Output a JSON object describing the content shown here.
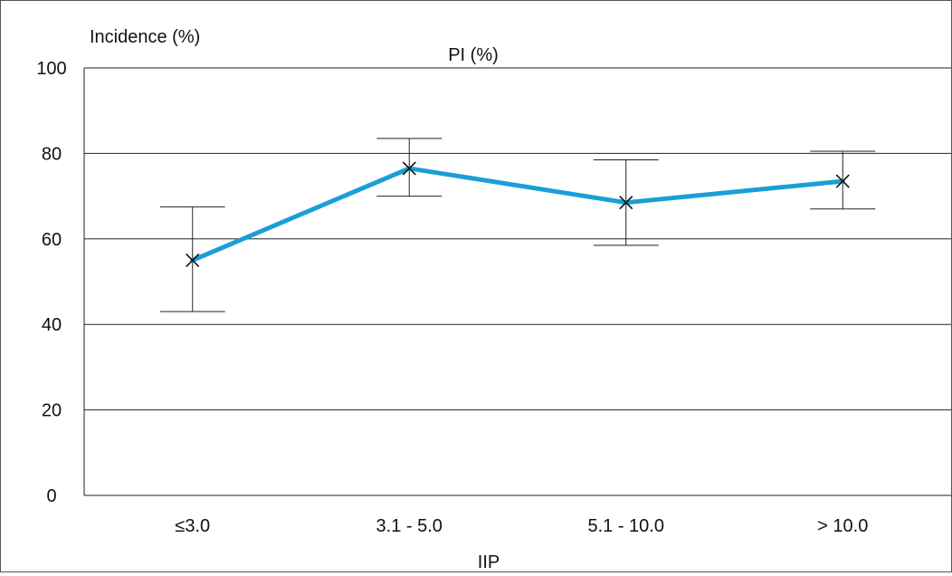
{
  "chart_data": {
    "type": "line",
    "title": "PI (%)",
    "ylabel": "Incidence (%)",
    "xlabel": "IIP",
    "categories": [
      "≤3.0",
      "3.1 - 5.0",
      "5.1 - 10.0",
      "> 10.0"
    ],
    "series": [
      {
        "values": [
          55.0,
          76.5,
          68.5,
          73.5
        ],
        "error_low": [
          43.0,
          70.0,
          58.5,
          67.0
        ],
        "error_high": [
          67.5,
          83.5,
          78.5,
          80.5
        ],
        "color": "#1a9fd6"
      }
    ],
    "ylim": [
      0,
      100
    ],
    "yticks": [
      0,
      20,
      40,
      60,
      80,
      100
    ],
    "grid": true,
    "legend": "none"
  }
}
